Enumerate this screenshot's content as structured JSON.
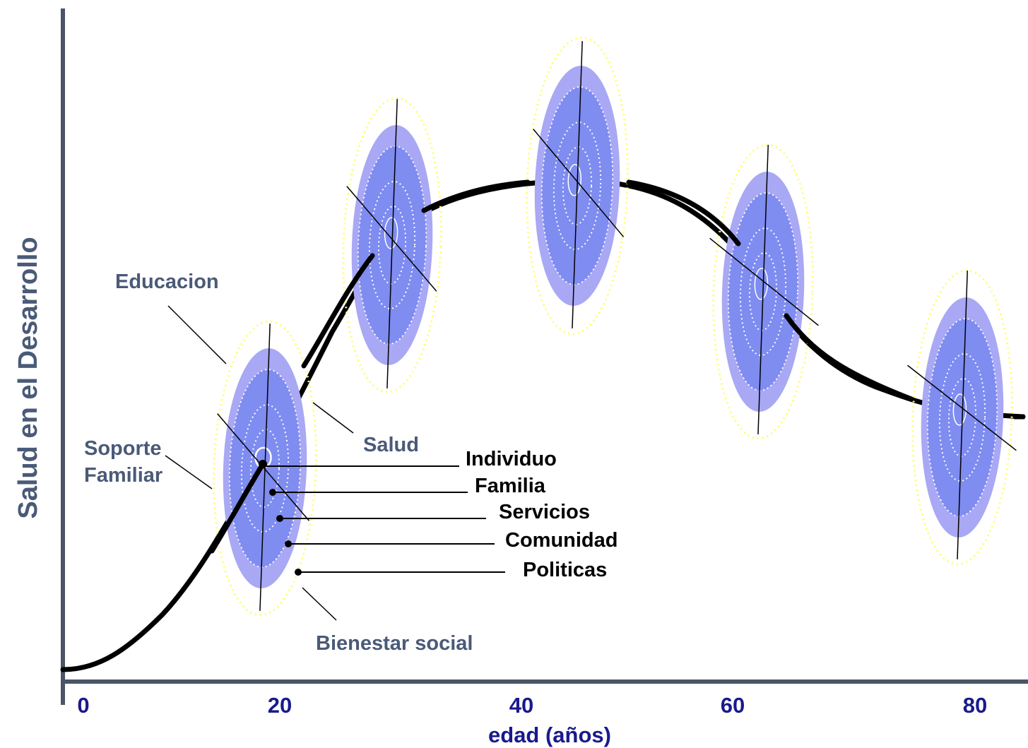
{
  "axes": {
    "x_title": "edad (años)",
    "y_title": "Salud en el Desarrollo",
    "x_ticks": [
      "0",
      "20",
      "40",
      "60",
      "80"
    ]
  },
  "spheres": {
    "education": "Educacion",
    "health": "Salud",
    "family_support_line1": "Soporte",
    "family_support_line2": "Familiar",
    "social_welfare": "Bienestar social"
  },
  "levels": {
    "individual": "Individuo",
    "family": "Familia",
    "services": "Servicios",
    "community": "Comunidad",
    "policies": "Politicas"
  },
  "colors": {
    "axis": "#4a5568",
    "curve": "#000000",
    "outer_ring": "#a8a8f4",
    "inner_ring": "#7f8cf0",
    "dotted_ring": "#ffffff",
    "outer_dotted": "#ffff66",
    "label_slate": "#4a5a78",
    "tick_blue": "#1a1a8c"
  }
}
